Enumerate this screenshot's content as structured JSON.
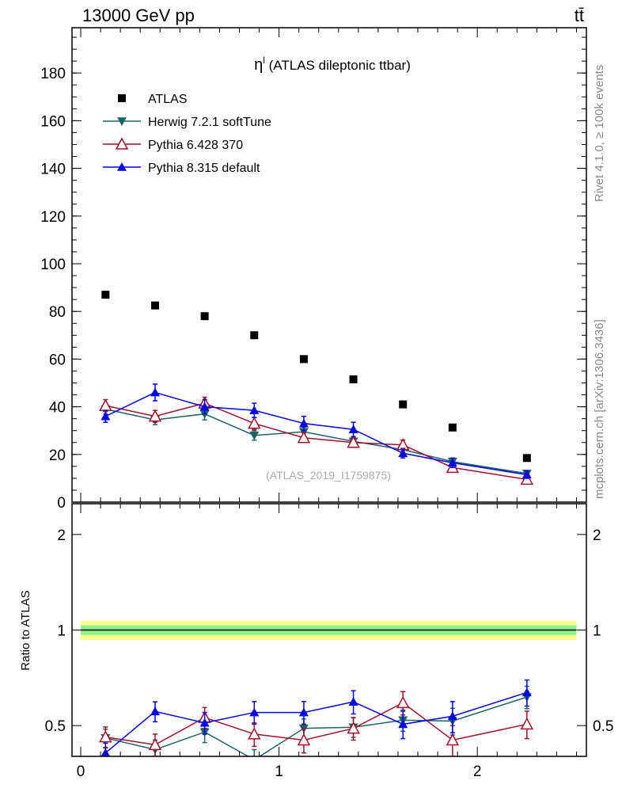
{
  "header": {
    "left": "13000 GeV pp",
    "right": "tt̄"
  },
  "side_labels": {
    "rivet": "Rivet 4.1.0, ≥ 100k events",
    "mcplots": "mcplots.cern.ch [arXiv:1306.3436]"
  },
  "chart_data": [
    {
      "type": "scatter",
      "title": "η",
      "title_sup": "l",
      "title_rest": " (ATLAS dileptonic ttbar)",
      "watermark": "(ATLAS_2019_I1759875)",
      "xlim": [
        -0.044,
        2.55
      ],
      "ylim": [
        0,
        199
      ],
      "yticks": [
        0,
        20,
        40,
        60,
        80,
        100,
        120,
        140,
        160,
        180
      ],
      "x": [
        0.125,
        0.375,
        0.625,
        0.875,
        1.125,
        1.375,
        1.625,
        1.875,
        2.25
      ],
      "legend_placement": "top-left",
      "series": [
        {
          "name": "ATLAS",
          "color": "#000000",
          "marker": "square",
          "values": [
            87,
            82.5,
            78,
            70,
            60,
            51.5,
            41,
            31.3,
            18.5
          ],
          "err": [
            0,
            0,
            0,
            0,
            0,
            0,
            0,
            0,
            0
          ]
        },
        {
          "name": "Herwig 7.2.1 softTune",
          "color": "#1f6464",
          "marker": "triangle-down",
          "values": [
            39,
            34.5,
            37,
            28,
            29.5,
            25.5,
            22,
            17,
            12
          ],
          "err": [
            2,
            2,
            2.5,
            2,
            2,
            1.5,
            1.5,
            1.2,
            1
          ]
        },
        {
          "name": "Pythia 6.428 370",
          "color": "#a0102a",
          "marker": "triangle-open",
          "values": [
            40.5,
            36,
            41.5,
            33,
            27,
            25,
            24,
            14.5,
            9.5
          ],
          "err": [
            2.5,
            2.5,
            2.5,
            2.5,
            2,
            2,
            2,
            1.5,
            1.5
          ]
        },
        {
          "name": "Pythia 8.315 default",
          "color": "#0000ee",
          "marker": "triangle-up",
          "values": [
            36,
            46,
            40,
            38.5,
            33,
            30.5,
            20.5,
            16.5,
            11.5
          ],
          "err": [
            2.5,
            3.5,
            3,
            3,
            3,
            3,
            2,
            2,
            1.5
          ]
        }
      ]
    },
    {
      "type": "scatter",
      "ylabel": "Ratio to ATLAS",
      "yscale": "log",
      "xlim": [
        -0.044,
        2.55
      ],
      "ylim": [
        0.4,
        2.5
      ],
      "yticks": [
        0.5,
        1,
        2
      ],
      "xticks": [
        0,
        1,
        2
      ],
      "x": [
        0.125,
        0.375,
        0.625,
        0.875,
        1.125,
        1.375,
        1.625,
        1.875,
        2.25
      ],
      "band_green": 0.035,
      "band_yellow": 0.07,
      "series": [
        {
          "name": "Herwig 7.2.1 softTune",
          "color": "#1f6464",
          "marker": "triangle-down",
          "values": [
            0.457,
            0.42,
            0.477,
            0.39,
            0.49,
            0.494,
            0.52,
            0.517,
            0.615
          ],
          "err": [
            0.03,
            0.03,
            0.035,
            0.03,
            0.035,
            0.035,
            0.04,
            0.05,
            0.05
          ]
        },
        {
          "name": "Pythia 6.428 370",
          "color": "#a0102a",
          "marker": "triangle-open",
          "values": [
            0.46,
            0.435,
            0.53,
            0.47,
            0.45,
            0.49,
            0.59,
            0.45,
            0.505
          ],
          "err": [
            0.035,
            0.035,
            0.04,
            0.04,
            0.04,
            0.04,
            0.05,
            0.05,
            0.05
          ]
        },
        {
          "name": "Pythia 8.315 default",
          "color": "#0000ee",
          "marker": "triangle-up",
          "values": [
            0.41,
            0.554,
            0.51,
            0.55,
            0.55,
            0.594,
            0.505,
            0.535,
            0.636
          ],
          "err": [
            0.03,
            0.04,
            0.04,
            0.045,
            0.045,
            0.05,
            0.05,
            0.06,
            0.06
          ]
        }
      ]
    }
  ]
}
